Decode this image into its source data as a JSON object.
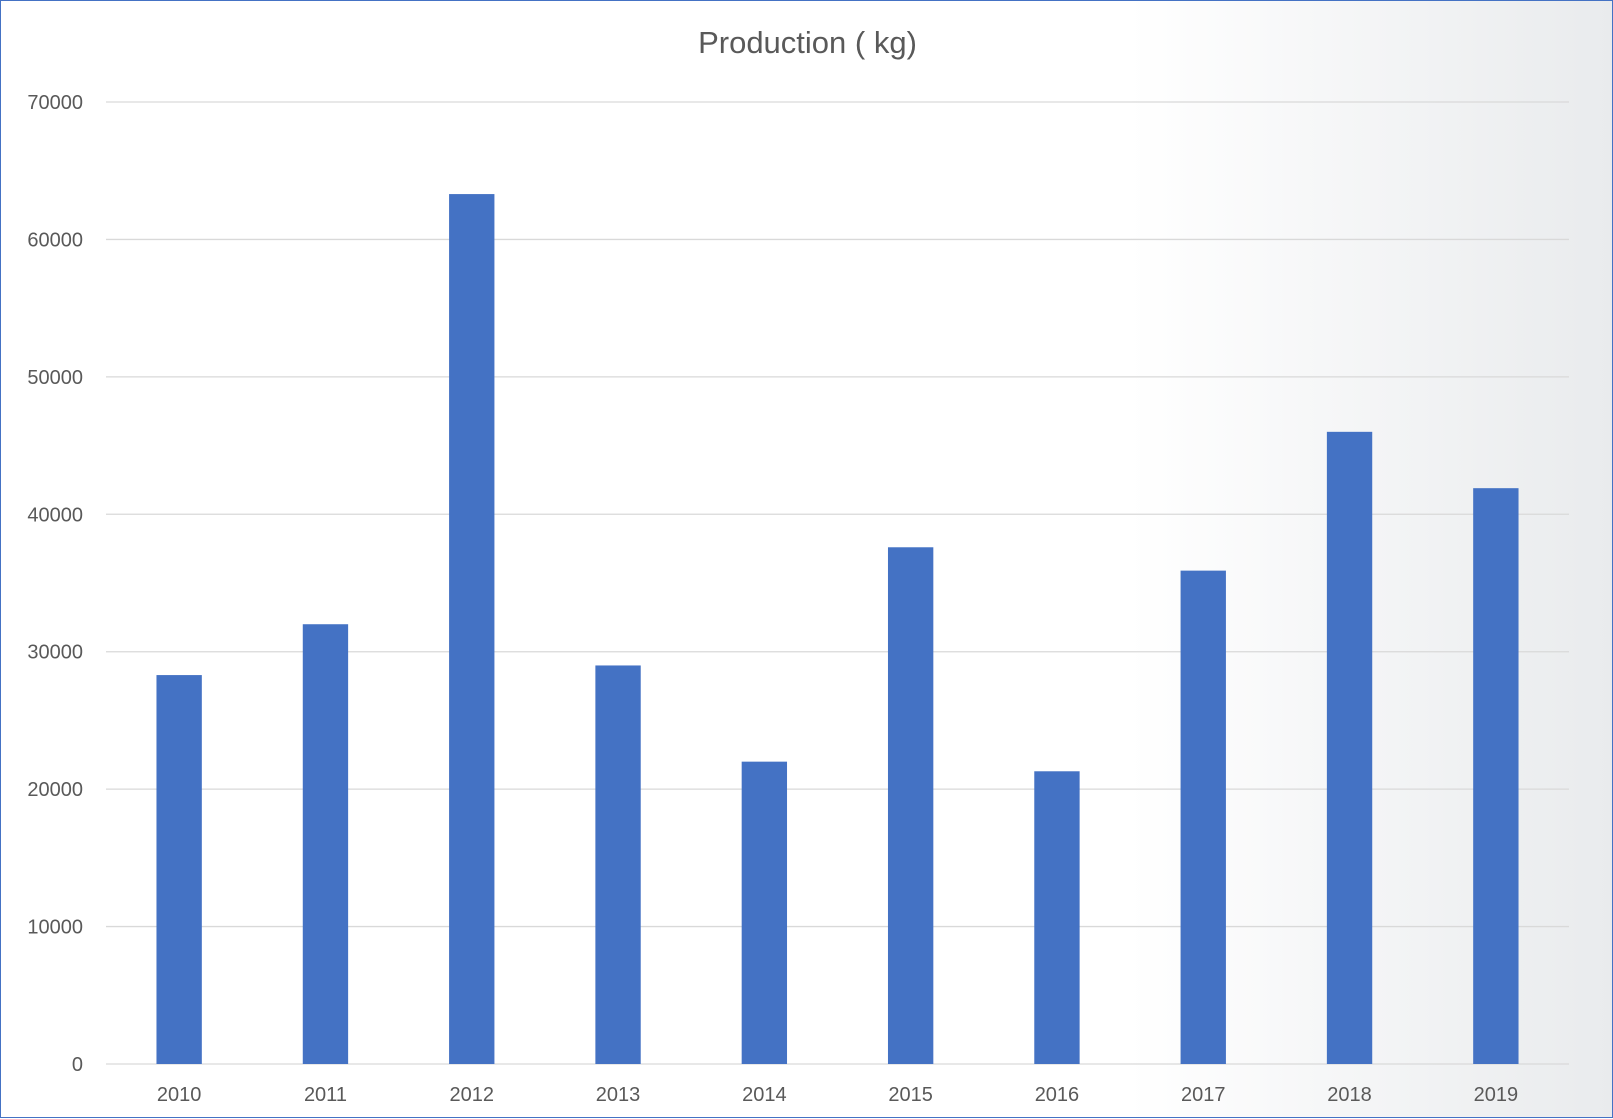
{
  "chart_data": {
    "type": "bar",
    "title": "Production ( kg)",
    "xlabel": "",
    "ylabel": "",
    "categories": [
      "2010",
      "2011",
      "2012",
      "2013",
      "2014",
      "2015",
      "2016",
      "2017",
      "2018",
      "2019"
    ],
    "series": [
      {
        "values": [
          28300,
          32000,
          63300,
          29000,
          22000,
          37600,
          21300,
          35900,
          46000,
          41900
        ],
        "color": "#4472c4"
      }
    ],
    "ylim": [
      0,
      70000
    ],
    "yticks": [
      "0",
      "10000",
      "20000",
      "30000",
      "40000",
      "50000",
      "60000",
      "70000"
    ],
    "grid": true,
    "legend": "none"
  },
  "colors": {
    "bar": "#4472c4",
    "grid": "#d9d9d9",
    "text": "#595959",
    "border": "#4472c4"
  }
}
